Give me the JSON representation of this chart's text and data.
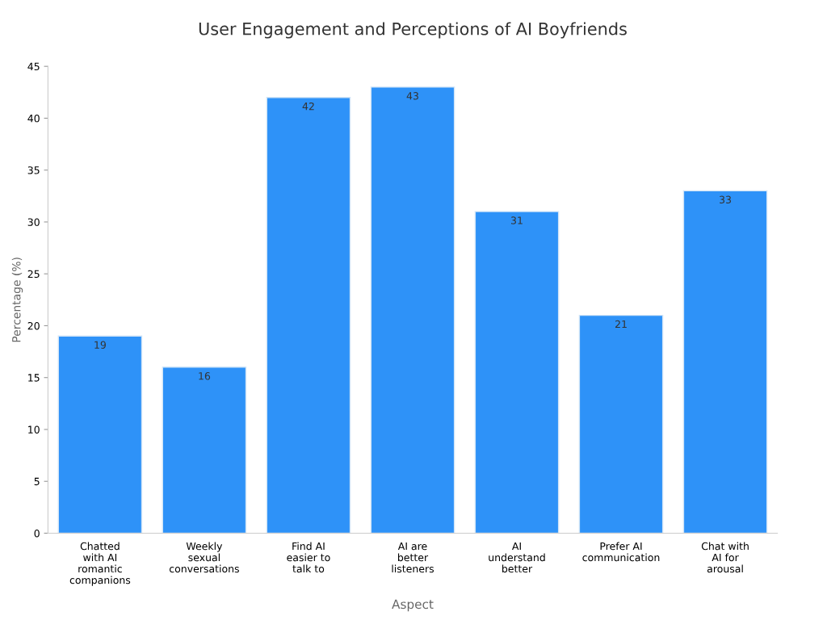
{
  "chart_data": {
    "type": "bar",
    "title": "User Engagement and Perceptions of AI Boyfriends",
    "xlabel": "Aspect",
    "ylabel": "Percentage (%)",
    "categories": [
      "Chatted with AI romantic companions",
      "Weekly sexual conversations",
      "Find AI easier to talk to",
      "AI are better listeners",
      "AI understand better",
      "Prefer AI communication",
      "Chat with AI for arousal"
    ],
    "values": [
      19,
      16,
      42,
      43,
      31,
      21,
      33
    ],
    "color": "#2e92f8",
    "ylim": [
      0,
      45
    ],
    "yticks": [
      0,
      5,
      10,
      15,
      20,
      25,
      30,
      35,
      40,
      45
    ],
    "grid": false,
    "legend": false,
    "data_labels": true
  }
}
